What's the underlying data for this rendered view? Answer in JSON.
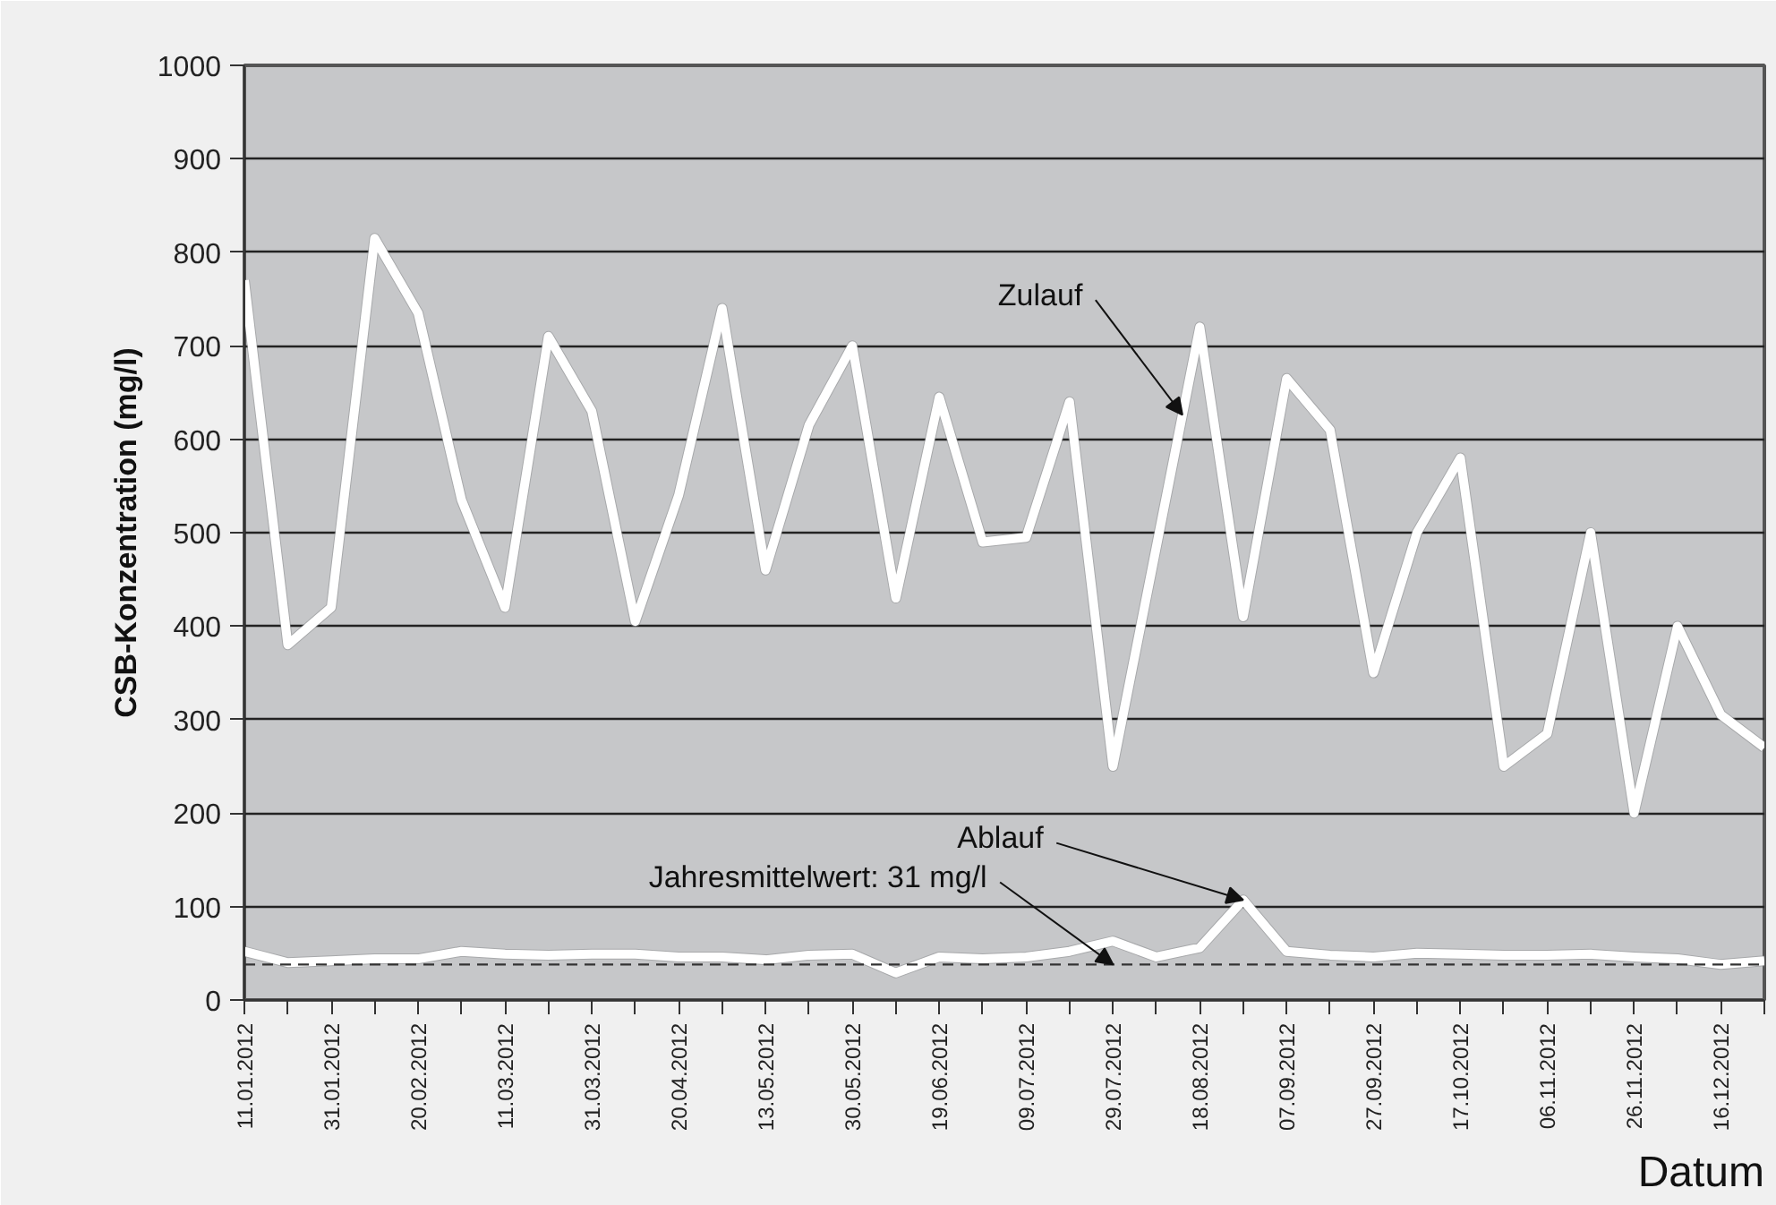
{
  "chart_data": {
    "type": "line",
    "ylabel": "CSB-Konzentration (mg/l)",
    "xlabel": "Datum",
    "categories": [
      "11.01.2012",
      null,
      "31.01.2012",
      null,
      "20.02.2012",
      null,
      "11.03.2012",
      null,
      "31.03.2012",
      null,
      "20.04.2012",
      null,
      "13.05.2012",
      null,
      "30.05.2012",
      null,
      "19.06.2012",
      null,
      "09.07.2012",
      null,
      "29.07.2012",
      null,
      "18.08.2012",
      null,
      "07.09.2012",
      null,
      "27.09.2012",
      null,
      "17.10.2012",
      null,
      "06.11.2012",
      null,
      "26.11.2012",
      null,
      "16.12.2012",
      null
    ],
    "series": [
      {
        "name": "Zulauf",
        "color": "#ffffff",
        "values": [
          770,
          380,
          420,
          815,
          735,
          535,
          420,
          710,
          630,
          405,
          540,
          740,
          460,
          615,
          700,
          430,
          645,
          490,
          495,
          640,
          250,
          485,
          720,
          410,
          665,
          610,
          350,
          500,
          580,
          250,
          285,
          500,
          200,
          400,
          305,
          270
        ]
      },
      {
        "name": "Ablauf",
        "color": "#ffffff",
        "values": [
          52,
          40,
          42,
          44,
          44,
          52,
          49,
          48,
          49,
          49,
          46,
          46,
          43,
          48,
          49,
          29,
          46,
          44,
          46,
          52,
          63,
          46,
          56,
          107,
          52,
          48,
          46,
          50,
          49,
          48,
          48,
          49,
          46,
          44,
          38,
          42
        ]
      }
    ],
    "ylim": [
      0,
      1000
    ],
    "yticks": [
      0,
      100,
      200,
      300,
      400,
      500,
      600,
      700,
      800,
      900,
      1000
    ],
    "grid": "y",
    "line_style": "solid",
    "marker": "none",
    "ref_lines": [
      {
        "axis": "y",
        "value": 38,
        "line_style": "dashed",
        "color": "#333333"
      }
    ],
    "annotations": [
      {
        "text": "Jahresmittelwert: 31 mg/l",
        "x": "29.07.2012",
        "y": 38
      }
    ]
  }
}
